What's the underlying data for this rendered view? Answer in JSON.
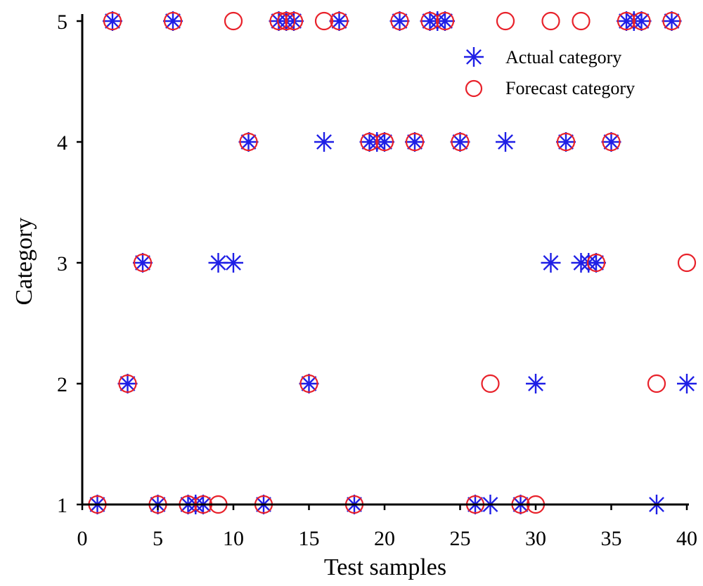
{
  "chart_data": {
    "type": "scatter",
    "title": "",
    "xlabel": "Test samples",
    "ylabel": "Category",
    "xlim": [
      0,
      40
    ],
    "ylim": [
      1,
      5
    ],
    "xticks": [
      "0",
      "5",
      "10",
      "15",
      "20",
      "25",
      "30",
      "35",
      "40"
    ],
    "yticks": [
      "1",
      "2",
      "3",
      "4",
      "5"
    ],
    "grid": false,
    "legend_position": "top-right",
    "colors": {
      "actual": "#1f1fe6",
      "forecast": "#e8212a"
    },
    "series": [
      {
        "name": "Actual category",
        "marker": "asterisk",
        "x": [
          1,
          2,
          3,
          4,
          5,
          6,
          7,
          7.5,
          8,
          9,
          10,
          11,
          12,
          13,
          13.5,
          14,
          15,
          16,
          17,
          18,
          19,
          19.5,
          20,
          21,
          22,
          23,
          23.5,
          24,
          25,
          26,
          27,
          28,
          29,
          30,
          31,
          32,
          33,
          33.5,
          34,
          35,
          36,
          36.5,
          37,
          38,
          39,
          40
        ],
        "y": [
          1,
          5,
          2,
          3,
          1,
          5,
          1,
          1,
          1,
          3,
          3,
          4,
          1,
          5,
          5,
          5,
          2,
          4,
          5,
          1,
          4,
          4,
          4,
          5,
          4,
          5,
          5,
          5,
          4,
          1,
          1,
          4,
          1,
          2,
          3,
          4,
          3,
          3,
          3,
          4,
          5,
          5,
          5,
          1,
          5,
          2
        ]
      },
      {
        "name": "Forecast category",
        "marker": "circle",
        "x": [
          1,
          2,
          3,
          4,
          5,
          6,
          7,
          8,
          9,
          10,
          11,
          12,
          13,
          13.5,
          14,
          15,
          16,
          17,
          18,
          19,
          20,
          21,
          22,
          23,
          24,
          25,
          26,
          27,
          28,
          29,
          30,
          31,
          32,
          33,
          34,
          35,
          36,
          37,
          38,
          39,
          40
        ],
        "y": [
          1,
          5,
          2,
          3,
          1,
          5,
          1,
          1,
          1,
          5,
          4,
          1,
          5,
          5,
          5,
          2,
          5,
          5,
          1,
          4,
          4,
          5,
          4,
          5,
          5,
          4,
          1,
          2,
          5,
          1,
          1,
          5,
          4,
          5,
          3,
          4,
          5,
          5,
          2,
          5,
          3
        ]
      }
    ]
  }
}
